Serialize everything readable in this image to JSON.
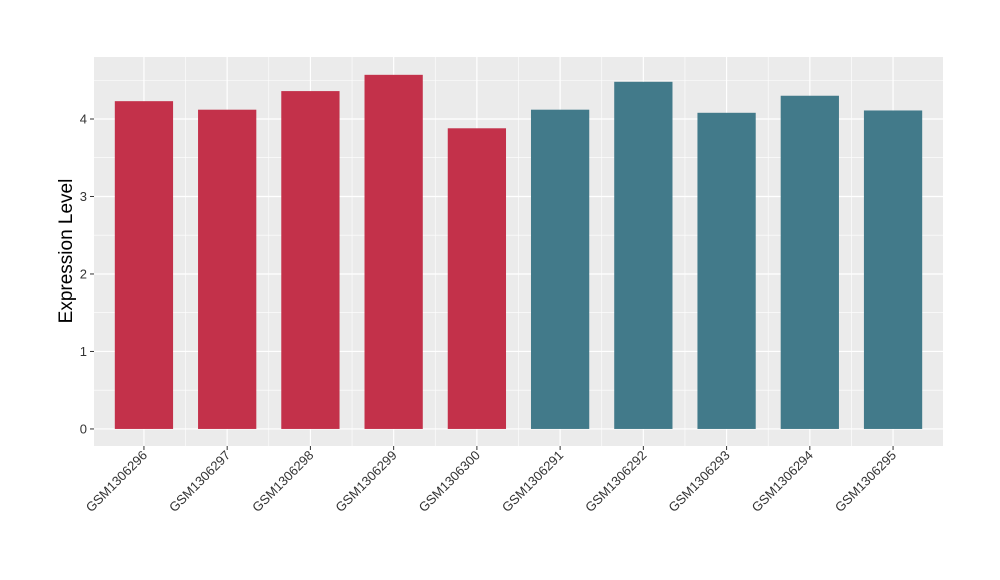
{
  "chart_data": {
    "type": "bar",
    "title": "",
    "xlabel": "",
    "ylabel": "Expression Level",
    "categories": [
      "GSM1306296",
      "GSM1306297",
      "GSM1306298",
      "GSM1306299",
      "GSM1306300",
      "GSM1306291",
      "GSM1306292",
      "GSM1306293",
      "GSM1306294",
      "GSM1306295"
    ],
    "values": [
      4.23,
      4.12,
      4.36,
      4.57,
      3.88,
      4.12,
      4.48,
      4.08,
      4.3,
      4.11
    ],
    "bar_colors": [
      "#c3314a",
      "#c3314a",
      "#c3314a",
      "#c3314a",
      "#c3314a",
      "#427a8a",
      "#427a8a",
      "#427a8a",
      "#427a8a",
      "#427a8a"
    ],
    "ylim": [
      -0.22,
      4.8
    ],
    "yticks": [
      0,
      1,
      2,
      3,
      4
    ],
    "grid": true,
    "legend": "none",
    "panel_color": "#ebebeb",
    "grid_color": "#ffffff"
  }
}
